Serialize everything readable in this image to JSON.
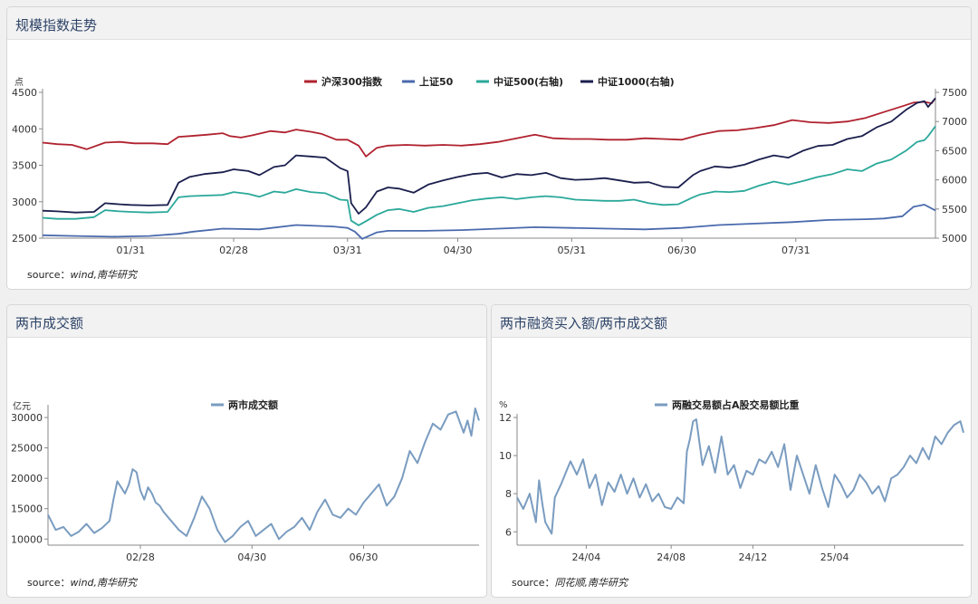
{
  "panels": {
    "top": {
      "title": "规模指数走势",
      "source_prefix": "source：",
      "source_text": "wind,南华研究"
    },
    "bl": {
      "title": "两市成交额",
      "source_prefix": "source：",
      "source_text": "wind,南华研究"
    },
    "br": {
      "title": "两市融资买入额/两市成交额",
      "source_prefix": "source：",
      "source_text": "同花顺,南华研究"
    }
  },
  "colors": {
    "hs300": "#b0222f",
    "sz50": "#4a6aad",
    "zz500": "#2aa89a",
    "zz1000": "#1b1f4d",
    "turnover": "#7a9cc0",
    "ratio": "#7a9cc0"
  },
  "chart_data": [
    {
      "type": "line",
      "title": "",
      "ylabel": "点",
      "ylim": [
        2500,
        4500
      ],
      "yticks": [
        2500,
        3000,
        3500,
        4000,
        4500
      ],
      "y2lim": [
        5000,
        7500
      ],
      "y2ticks": [
        5000,
        5500,
        6000,
        6500,
        7000,
        7500
      ],
      "x_ticks": [
        "01/31",
        "02/28",
        "03/31",
        "04/30",
        "05/31",
        "06/30",
        "07/31"
      ],
      "x_tick_pos": [
        25,
        53,
        84,
        114,
        145,
        175,
        206
      ],
      "x_range": [
        1,
        244
      ],
      "legend": "top",
      "series": [
        {
          "name": "沪深300指数",
          "axis": "left",
          "x": [
            1,
            5,
            9,
            13,
            18,
            22,
            26,
            31,
            35,
            38,
            41,
            46,
            50,
            52,
            55,
            58,
            63,
            67,
            70,
            74,
            77,
            81,
            84,
            87,
            89,
            92,
            95,
            100,
            105,
            110,
            115,
            120,
            125,
            130,
            135,
            140,
            145,
            150,
            155,
            160,
            165,
            170,
            175,
            180,
            185,
            190,
            195,
            200,
            205,
            210,
            215,
            220,
            225,
            230,
            235,
            238,
            241,
            243,
            244
          ],
          "y": [
            3810,
            3790,
            3780,
            3720,
            3810,
            3820,
            3800,
            3800,
            3790,
            3890,
            3900,
            3920,
            3940,
            3900,
            3880,
            3910,
            3970,
            3950,
            3990,
            3960,
            3930,
            3850,
            3850,
            3770,
            3620,
            3740,
            3770,
            3780,
            3770,
            3780,
            3770,
            3790,
            3820,
            3870,
            3920,
            3870,
            3860,
            3860,
            3850,
            3850,
            3870,
            3860,
            3850,
            3920,
            3970,
            3980,
            4010,
            4050,
            4120,
            4090,
            4080,
            4100,
            4150,
            4230,
            4310,
            4360,
            4370,
            4350,
            4420
          ]
        },
        {
          "name": "上证50",
          "axis": "left",
          "x": [
            1,
            10,
            20,
            30,
            38,
            42,
            50,
            60,
            70,
            80,
            84,
            86,
            88,
            92,
            95,
            105,
            115,
            125,
            135,
            145,
            155,
            165,
            175,
            185,
            195,
            205,
            215,
            225,
            230,
            235,
            238,
            241,
            244
          ],
          "y": [
            2540,
            2530,
            2520,
            2530,
            2560,
            2590,
            2630,
            2620,
            2680,
            2660,
            2640,
            2590,
            2490,
            2580,
            2600,
            2600,
            2610,
            2630,
            2650,
            2640,
            2630,
            2620,
            2640,
            2680,
            2700,
            2720,
            2750,
            2760,
            2770,
            2800,
            2930,
            2960,
            2880
          ]
        },
        {
          "name": "中证500(右轴)",
          "axis": "right",
          "x": [
            1,
            5,
            10,
            15,
            18,
            22,
            25,
            30,
            35,
            38,
            41,
            45,
            50,
            53,
            57,
            60,
            64,
            67,
            70,
            74,
            78,
            82,
            84,
            85,
            87,
            89,
            92,
            95,
            98,
            102,
            106,
            110,
            114,
            118,
            122,
            126,
            130,
            134,
            138,
            142,
            146,
            150,
            154,
            158,
            162,
            166,
            170,
            174,
            178,
            180,
            184,
            188,
            192,
            196,
            200,
            204,
            208,
            212,
            216,
            220,
            224,
            228,
            232,
            236,
            239,
            241,
            242,
            244
          ],
          "y": [
            5350,
            5330,
            5330,
            5360,
            5480,
            5460,
            5450,
            5440,
            5450,
            5700,
            5720,
            5730,
            5740,
            5790,
            5760,
            5710,
            5800,
            5780,
            5840,
            5790,
            5770,
            5660,
            5650,
            5300,
            5220,
            5290,
            5400,
            5480,
            5500,
            5450,
            5520,
            5550,
            5600,
            5650,
            5680,
            5700,
            5670,
            5700,
            5720,
            5700,
            5660,
            5650,
            5640,
            5640,
            5660,
            5600,
            5570,
            5580,
            5700,
            5750,
            5800,
            5790,
            5810,
            5900,
            5970,
            5920,
            5980,
            6050,
            6100,
            6180,
            6150,
            6280,
            6350,
            6500,
            6650,
            6680,
            6750,
            6920
          ]
        },
        {
          "name": "中证1000(右轴)",
          "axis": "right",
          "x": [
            1,
            5,
            10,
            15,
            18,
            22,
            25,
            30,
            35,
            38,
            41,
            45,
            50,
            53,
            57,
            60,
            64,
            67,
            70,
            74,
            78,
            82,
            84,
            85,
            87,
            89,
            92,
            95,
            98,
            102,
            106,
            110,
            114,
            118,
            122,
            126,
            130,
            134,
            138,
            142,
            146,
            150,
            154,
            158,
            162,
            166,
            170,
            174,
            178,
            180,
            184,
            188,
            192,
            196,
            200,
            204,
            208,
            212,
            216,
            220,
            224,
            228,
            232,
            236,
            239,
            241,
            242,
            244
          ],
          "y": [
            5470,
            5460,
            5440,
            5450,
            5600,
            5580,
            5570,
            5560,
            5570,
            5950,
            6050,
            6100,
            6130,
            6180,
            6150,
            6080,
            6220,
            6250,
            6420,
            6400,
            6380,
            6200,
            6150,
            5600,
            5420,
            5530,
            5800,
            5870,
            5850,
            5780,
            5920,
            5990,
            6050,
            6100,
            6120,
            6040,
            6100,
            6080,
            6120,
            6030,
            6000,
            6010,
            6030,
            5990,
            5950,
            5960,
            5880,
            5870,
            6080,
            6150,
            6230,
            6210,
            6260,
            6350,
            6420,
            6380,
            6500,
            6580,
            6600,
            6700,
            6750,
            6900,
            7000,
            7200,
            7320,
            7350,
            7250,
            7400
          ]
        }
      ]
    },
    {
      "type": "line",
      "title": "",
      "ylabel": "亿元",
      "ylim": [
        9000,
        31500
      ],
      "yticks": [
        10000,
        15000,
        20000,
        25000,
        30000
      ],
      "x_ticks": [
        "02/28",
        "04/30",
        "06/30"
      ],
      "x_tick_pos": [
        25,
        54,
        83
      ],
      "x_range": [
        1,
        113
      ],
      "legend": "top",
      "series": [
        {
          "name": "两市成交额",
          "x": [
            1,
            3,
            5,
            7,
            9,
            11,
            13,
            15,
            17,
            18,
            19,
            20,
            21,
            22,
            23,
            24,
            25,
            26,
            27,
            28,
            29,
            30,
            31,
            33,
            35,
            37,
            39,
            41,
            43,
            45,
            47,
            49,
            51,
            53,
            55,
            57,
            59,
            61,
            63,
            65,
            67,
            69,
            71,
            73,
            75,
            77,
            79,
            81,
            83,
            85,
            87,
            89,
            91,
            93,
            95,
            97,
            99,
            101,
            103,
            105,
            107,
            109,
            110,
            111,
            112,
            113
          ],
          "y": [
            14000,
            11500,
            12000,
            10500,
            11200,
            12500,
            11000,
            11800,
            13000,
            16500,
            19500,
            18500,
            17500,
            19000,
            21500,
            21000,
            18000,
            16500,
            18500,
            17500,
            16000,
            15500,
            14500,
            13000,
            11500,
            10500,
            13500,
            17000,
            15000,
            11500,
            9500,
            10500,
            12000,
            13000,
            10500,
            11500,
            12500,
            10000,
            11200,
            12000,
            13500,
            11500,
            14500,
            16500,
            14000,
            13500,
            15000,
            14000,
            16000,
            17500,
            19000,
            15500,
            17000,
            20000,
            24500,
            22500,
            26000,
            29000,
            28000,
            30500,
            31000,
            27500,
            29500,
            27000,
            31500,
            29500
          ]
        }
      ]
    },
    {
      "type": "line",
      "title": "",
      "ylabel": "%",
      "ylim": [
        5.3,
        12
      ],
      "yticks": [
        6,
        8,
        10,
        12
      ],
      "x_ticks": [
        "24/04",
        "24/08",
        "24/12",
        "25/04"
      ],
      "x_tick_pos": [
        23,
        50,
        76,
        102
      ],
      "x_range": [
        1,
        143
      ],
      "legend": "top",
      "series": [
        {
          "name": "两融交易额占A股交易额比重",
          "x": [
            1,
            3,
            5,
            7,
            8,
            9,
            10,
            11,
            12,
            13,
            15,
            17,
            18,
            20,
            22,
            24,
            26,
            28,
            30,
            32,
            34,
            36,
            38,
            40,
            42,
            44,
            46,
            48,
            50,
            52,
            54,
            55,
            56,
            57,
            58,
            60,
            62,
            64,
            66,
            68,
            70,
            72,
            74,
            76,
            78,
            80,
            82,
            84,
            86,
            88,
            90,
            92,
            94,
            96,
            98,
            100,
            102,
            104,
            106,
            108,
            110,
            112,
            114,
            116,
            118,
            120,
            122,
            124,
            126,
            128,
            130,
            132,
            134,
            136,
            138,
            140,
            142,
            143
          ],
          "y": [
            7.8,
            7.2,
            8.0,
            6.5,
            8.7,
            7.5,
            6.5,
            6.2,
            5.9,
            7.8,
            8.5,
            9.3,
            9.7,
            9.0,
            9.8,
            8.3,
            9.0,
            7.4,
            8.6,
            8.1,
            9.0,
            8.0,
            8.8,
            7.8,
            8.5,
            7.6,
            8.0,
            7.3,
            7.2,
            7.8,
            7.5,
            10.2,
            10.9,
            11.8,
            11.9,
            9.5,
            10.5,
            9.1,
            11.0,
            9.0,
            9.5,
            8.3,
            9.2,
            9.0,
            9.8,
            9.6,
            10.2,
            9.4,
            10.6,
            8.2,
            10.0,
            9.0,
            8.0,
            9.5,
            8.3,
            7.3,
            9.0,
            8.5,
            7.8,
            8.2,
            9.0,
            8.6,
            8.0,
            8.4,
            7.6,
            8.8,
            9.0,
            9.4,
            10.0,
            9.6,
            10.4,
            9.8,
            11.0,
            10.6,
            11.2,
            11.6,
            11.8,
            11.2
          ]
        }
      ]
    }
  ]
}
